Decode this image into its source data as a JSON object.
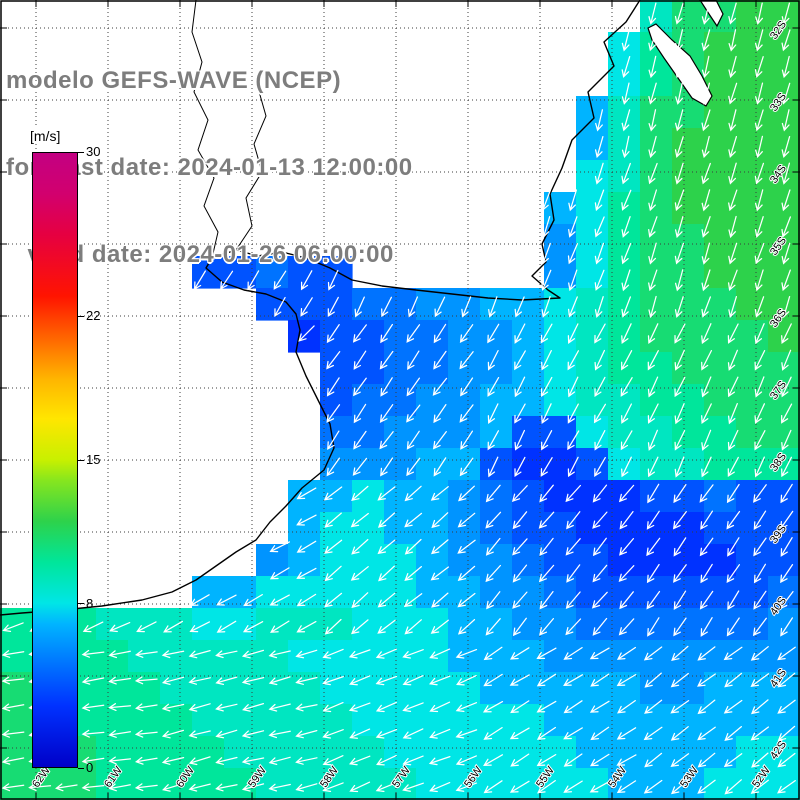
{
  "title": {
    "line1": "modelo GEFS-WAVE (NCEP)",
    "line2": "forecast date: 2024-01-13 12:00:00",
    "line3": "   valid date: 2024-01-26 06:00:00"
  },
  "colorbar": {
    "unit_label": "[m/s]",
    "min": 0,
    "max": 30,
    "ticks": [
      30,
      22,
      15,
      8,
      0
    ],
    "stops": [
      [
        0,
        "#0000c8"
      ],
      [
        3,
        "#0032ff"
      ],
      [
        5,
        "#0073ff"
      ],
      [
        7,
        "#00b4ff"
      ],
      [
        8,
        "#00e6e6"
      ],
      [
        10,
        "#00e69b"
      ],
      [
        12,
        "#2dd24b"
      ],
      [
        14,
        "#87e61e"
      ],
      [
        15,
        "#c8f000"
      ],
      [
        17,
        "#ffe600"
      ],
      [
        19,
        "#ffb400"
      ],
      [
        21,
        "#ff6400"
      ],
      [
        23,
        "#ff1400"
      ],
      [
        26,
        "#e60041"
      ],
      [
        28,
        "#d2006e"
      ],
      [
        30,
        "#c30082"
      ]
    ]
  },
  "axes": {
    "lat_labels": [
      "32S",
      "33S",
      "34S",
      "35S",
      "36S",
      "37S",
      "38S",
      "39S",
      "40S",
      "41S",
      "42S"
    ],
    "lon_labels": [
      "62W",
      "61W",
      "60W",
      "59W",
      "58W",
      "57W",
      "56W",
      "55W",
      "54W",
      "53W",
      "52W"
    ]
  },
  "map": {
    "cell_size": 32,
    "speed_unit": "m/s",
    "speed_grid": [
      [
        -1,
        -1,
        -1,
        -1,
        -1,
        -1,
        -1,
        -1,
        -1,
        -1,
        -1,
        -1,
        -1,
        -1,
        -1,
        -1,
        -1,
        -1,
        -1,
        -1,
        9,
        11,
        11,
        12,
        12
      ],
      [
        -1,
        -1,
        -1,
        -1,
        -1,
        -1,
        -1,
        -1,
        -1,
        -1,
        -1,
        -1,
        -1,
        -1,
        -1,
        -1,
        -1,
        -1,
        -1,
        8,
        10,
        11,
        12,
        12,
        12
      ],
      [
        -1,
        -1,
        -1,
        -1,
        -1,
        -1,
        -1,
        -1,
        -1,
        -1,
        -1,
        -1,
        -1,
        -1,
        -1,
        -1,
        -1,
        -1,
        -1,
        8,
        10,
        11,
        12,
        12,
        12
      ],
      [
        -1,
        -1,
        -1,
        -1,
        -1,
        -1,
        -1,
        -1,
        -1,
        -1,
        -1,
        -1,
        -1,
        -1,
        -1,
        -1,
        -1,
        -1,
        7,
        9,
        11,
        11,
        12,
        12,
        12
      ],
      [
        -1,
        -1,
        -1,
        -1,
        -1,
        -1,
        -1,
        -1,
        -1,
        -1,
        -1,
        -1,
        -1,
        -1,
        -1,
        -1,
        -1,
        -1,
        7,
        9,
        11,
        12,
        12,
        12,
        12
      ],
      [
        -1,
        -1,
        -1,
        -1,
        -1,
        -1,
        -1,
        -1,
        -1,
        -1,
        -1,
        -1,
        -1,
        -1,
        -1,
        -1,
        -1,
        -1,
        8,
        9,
        11,
        12,
        12,
        12,
        12
      ],
      [
        -1,
        -1,
        -1,
        -1,
        -1,
        -1,
        -1,
        -1,
        -1,
        -1,
        -1,
        -1,
        -1,
        -1,
        -1,
        -1,
        -1,
        7,
        8,
        10,
        11,
        12,
        12,
        12,
        12
      ],
      [
        -1,
        -1,
        -1,
        -1,
        -1,
        -1,
        -1,
        -1,
        -1,
        -1,
        -1,
        -1,
        -1,
        -1,
        -1,
        -1,
        -1,
        6,
        8,
        10,
        11,
        11,
        12,
        12,
        12
      ],
      [
        -1,
        -1,
        -1,
        -1,
        -1,
        -1,
        4,
        4,
        5,
        4,
        4,
        -1,
        -1,
        -1,
        -1,
        -1,
        -1,
        6,
        8,
        10,
        11,
        11,
        12,
        12,
        12
      ],
      [
        -1,
        -1,
        -1,
        -1,
        -1,
        -1,
        -1,
        -1,
        4,
        4,
        4,
        5,
        5,
        6,
        6,
        7,
        7,
        8,
        9,
        10,
        11,
        11,
        11,
        12,
        12
      ],
      [
        -1,
        -1,
        -1,
        -1,
        -1,
        -1,
        -1,
        -1,
        -1,
        3,
        4,
        4,
        5,
        5,
        6,
        6,
        7,
        8,
        9,
        10,
        11,
        11,
        11,
        11,
        12
      ],
      [
        -1,
        -1,
        -1,
        -1,
        -1,
        -1,
        -1,
        -1,
        -1,
        -1,
        4,
        4,
        5,
        5,
        6,
        6,
        7,
        8,
        9,
        10,
        10,
        11,
        11,
        11,
        11
      ],
      [
        -1,
        -1,
        -1,
        -1,
        -1,
        -1,
        -1,
        -1,
        -1,
        -1,
        4,
        5,
        5,
        6,
        6,
        7,
        7,
        8,
        9,
        9,
        10,
        10,
        11,
        11,
        11
      ],
      [
        -1,
        -1,
        -1,
        -1,
        -1,
        -1,
        -1,
        -1,
        -1,
        -1,
        5,
        5,
        6,
        6,
        6,
        7,
        4,
        4,
        8,
        9,
        9,
        10,
        10,
        11,
        11
      ],
      [
        -1,
        -1,
        -1,
        -1,
        -1,
        -1,
        -1,
        -1,
        -1,
        -1,
        6,
        6,
        6,
        7,
        7,
        4,
        3,
        3,
        4,
        8,
        9,
        9,
        10,
        10,
        10
      ],
      [
        -1,
        -1,
        -1,
        -1,
        -1,
        -1,
        -1,
        -1,
        -1,
        7,
        7,
        8,
        7,
        7,
        6,
        5,
        4,
        3,
        3,
        3,
        4,
        4,
        5,
        4,
        4
      ],
      [
        -1,
        -1,
        -1,
        -1,
        -1,
        -1,
        -1,
        -1,
        -1,
        7,
        8,
        8,
        7,
        7,
        6,
        5,
        4,
        4,
        3,
        3,
        3,
        3,
        4,
        4,
        4
      ],
      [
        -1,
        -1,
        -1,
        -1,
        -1,
        -1,
        -1,
        -1,
        6,
        7,
        8,
        8,
        8,
        7,
        6,
        6,
        5,
        4,
        4,
        3,
        3,
        3,
        3,
        4,
        4
      ],
      [
        -1,
        -1,
        -1,
        -1,
        -1,
        -1,
        7,
        7,
        8,
        8,
        8,
        8,
        8,
        7,
        7,
        6,
        6,
        5,
        4,
        4,
        4,
        4,
        4,
        4,
        5
      ],
      [
        10,
        10,
        10,
        9,
        9,
        9,
        8,
        8,
        9,
        9,
        9,
        8,
        8,
        8,
        7,
        7,
        6,
        6,
        5,
        5,
        5,
        5,
        5,
        5,
        6
      ],
      [
        10,
        10,
        10,
        10,
        9,
        9,
        9,
        9,
        9,
        8,
        8,
        8,
        8,
        8,
        7,
        7,
        7,
        6,
        6,
        6,
        6,
        6,
        6,
        6,
        6
      ],
      [
        11,
        10,
        10,
        10,
        10,
        9,
        9,
        9,
        9,
        9,
        8,
        8,
        8,
        8,
        8,
        7,
        7,
        7,
        7,
        7,
        6,
        6,
        7,
        7,
        7
      ],
      [
        11,
        11,
        10,
        10,
        10,
        10,
        9,
        9,
        9,
        9,
        9,
        8,
        8,
        8,
        8,
        8,
        8,
        7,
        7,
        7,
        7,
        7,
        7,
        7,
        7
      ],
      [
        11,
        11,
        11,
        10,
        10,
        10,
        10,
        9,
        9,
        9,
        9,
        9,
        8,
        8,
        8,
        8,
        8,
        8,
        7,
        7,
        7,
        7,
        7,
        8,
        8
      ],
      [
        11,
        11,
        11,
        10,
        10,
        10,
        10,
        10,
        9,
        9,
        9,
        9,
        9,
        8,
        8,
        8,
        8,
        8,
        8,
        7,
        7,
        7,
        8,
        8,
        8
      ]
    ],
    "direction_grid_deg": [
      [
        210,
        210,
        200,
        195,
        195
      ],
      [
        215,
        212,
        205,
        200,
        198
      ],
      [
        228,
        222,
        215,
        208,
        205
      ],
      [
        246,
        240,
        230,
        220,
        214
      ],
      [
        262,
        256,
        248,
        238,
        232
      ]
    ],
    "coastline": [
      [
        640,
        0
      ],
      [
        626,
        22
      ],
      [
        604,
        42
      ],
      [
        614,
        66
      ],
      [
        588,
        92
      ],
      [
        594,
        118
      ],
      [
        572,
        140
      ],
      [
        562,
        168
      ],
      [
        550,
        194
      ],
      [
        554,
        220
      ],
      [
        542,
        244
      ],
      [
        546,
        262
      ],
      [
        532,
        276
      ],
      [
        548,
        290
      ],
      [
        560,
        298
      ],
      [
        522,
        300
      ],
      [
        488,
        298
      ],
      [
        452,
        294
      ],
      [
        416,
        290
      ],
      [
        382,
        286
      ],
      [
        352,
        280
      ],
      [
        330,
        268
      ],
      [
        306,
        258
      ],
      [
        282,
        252
      ],
      [
        258,
        256
      ],
      [
        236,
        250
      ],
      [
        212,
        258
      ],
      [
        206,
        268
      ],
      [
        222,
        282
      ],
      [
        244,
        290
      ],
      [
        266,
        294
      ],
      [
        286,
        302
      ],
      [
        296,
        314
      ],
      [
        300,
        330
      ],
      [
        296,
        352
      ],
      [
        306,
        376
      ],
      [
        318,
        400
      ],
      [
        330,
        424
      ],
      [
        334,
        448
      ],
      [
        324,
        470
      ],
      [
        302,
        488
      ],
      [
        286,
        506
      ],
      [
        270,
        522
      ],
      [
        256,
        540
      ],
      [
        236,
        552
      ],
      [
        216,
        566
      ],
      [
        196,
        580
      ],
      [
        172,
        592
      ],
      [
        142,
        600
      ],
      [
        102,
        606
      ],
      [
        62,
        610
      ],
      [
        22,
        613
      ],
      [
        0,
        615
      ]
    ],
    "rivers": [
      [
        [
          212,
          258
        ],
        [
          218,
          232
        ],
        [
          204,
          206
        ],
        [
          214,
          178
        ],
        [
          198,
          150
        ],
        [
          208,
          120
        ],
        [
          194,
          92
        ],
        [
          202,
          62
        ],
        [
          192,
          32
        ],
        [
          196,
          0
        ]
      ],
      [
        [
          236,
          250
        ],
        [
          252,
          226
        ],
        [
          246,
          198
        ],
        [
          262,
          172
        ],
        [
          254,
          144
        ],
        [
          266,
          116
        ],
        [
          258,
          88
        ]
      ]
    ],
    "islands": [
      [
        [
          656,
          24
        ],
        [
          672,
          40
        ],
        [
          690,
          56
        ],
        [
          702,
          76
        ],
        [
          712,
          96
        ],
        [
          706,
          106
        ],
        [
          692,
          98
        ],
        [
          678,
          78
        ],
        [
          664,
          58
        ],
        [
          652,
          40
        ],
        [
          648,
          28
        ]
      ],
      [
        [
          700,
          0
        ],
        [
          709,
          14
        ],
        [
          717,
          26
        ],
        [
          723,
          14
        ],
        [
          716,
          0
        ]
      ]
    ]
  },
  "colors": {
    "background": "#ffffff",
    "land": "#ffffff",
    "coastline": "#000000",
    "graticule": "#3c3c3c",
    "arrow": "#ffffff",
    "title_text": "#7d7d7d",
    "axis_label": "#000000",
    "frame": "#000000"
  }
}
